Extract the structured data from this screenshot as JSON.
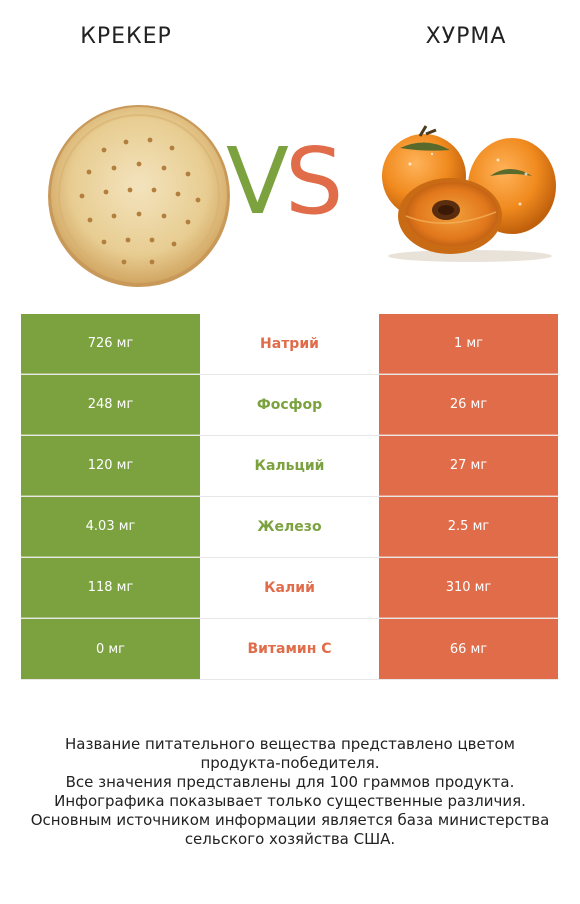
{
  "header": {
    "left_title": "КРЕКЕР",
    "right_title": "ХУРМА"
  },
  "vs": {
    "v": "V",
    "s": "S"
  },
  "colors": {
    "left": "#7ba23f",
    "right": "#e06c4a"
  },
  "rows": [
    {
      "left": "726 мг",
      "nutrient": "Натрий",
      "right": "1 мг",
      "winner": "right"
    },
    {
      "left": "248 мг",
      "nutrient": "Фосфор",
      "right": "26 мг",
      "winner": "left"
    },
    {
      "left": "120 мг",
      "nutrient": "Кальций",
      "right": "27 мг",
      "winner": "left"
    },
    {
      "left": "4.03 мг",
      "nutrient": "Железо",
      "right": "2.5 мг",
      "winner": "left"
    },
    {
      "left": "118 мг",
      "nutrient": "Калий",
      "right": "310 мг",
      "winner": "right"
    },
    {
      "left": "0 мг",
      "nutrient": "Витамин C",
      "right": "66 мг",
      "winner": "right"
    }
  ],
  "footer": {
    "line1": "Название питательного вещества представлено цветом",
    "line2": "продукта-победителя.",
    "line3": "Все значения представлены для 100 граммов продукта.",
    "line4": "Инфографика показывает только существенные различия.",
    "line5": "Основным источником информации является база министерства",
    "line6": "сельского хозяйства США."
  }
}
